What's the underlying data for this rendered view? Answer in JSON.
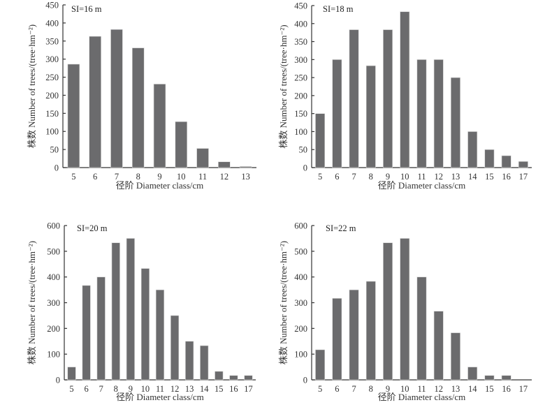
{
  "chart_data": [
    {
      "type": "bar",
      "panel_label": "SI=16 m",
      "categories": [
        "5",
        "6",
        "7",
        "8",
        "9",
        "10",
        "11",
        "12",
        "13"
      ],
      "values": [
        286,
        363,
        382,
        331,
        231,
        127,
        53,
        16,
        3
      ],
      "xlabel": "径阶 Diameter class/cm",
      "ylabel": "株数 Number of trees/(tree·hm⁻²)",
      "ylim": [
        0,
        450
      ],
      "yticks": [
        0,
        50,
        100,
        150,
        200,
        250,
        300,
        350,
        400,
        450
      ],
      "grid": false,
      "legend": "none"
    },
    {
      "type": "bar",
      "panel_label": "SI=18 m",
      "categories": [
        "5",
        "6",
        "7",
        "8",
        "9",
        "10",
        "11",
        "12",
        "13",
        "14",
        "15",
        "16",
        "17"
      ],
      "values": [
        150,
        300,
        383,
        283,
        383,
        433,
        300,
        300,
        250,
        100,
        50,
        33,
        17
      ],
      "xlabel": "径阶 Diameter class/cm",
      "ylabel": "株数 Number of trees/(tree·hm⁻²)",
      "ylim": [
        0,
        450
      ],
      "yticks": [
        0,
        50,
        100,
        150,
        200,
        250,
        300,
        350,
        400,
        450
      ],
      "grid": false,
      "legend": "none"
    },
    {
      "type": "bar",
      "panel_label": "SI=20 m",
      "categories": [
        "5",
        "6",
        "7",
        "8",
        "9",
        "10",
        "11",
        "12",
        "13",
        "14",
        "15",
        "16",
        "17"
      ],
      "values": [
        50,
        367,
        400,
        533,
        550,
        433,
        350,
        250,
        150,
        133,
        33,
        17,
        17
      ],
      "xlabel": "径阶 Diameter class/cm",
      "ylabel": "株数 Number of trees/(tree·hm⁻²)",
      "ylim": [
        0,
        600
      ],
      "yticks": [
        0,
        100,
        200,
        300,
        400,
        500,
        600
      ],
      "grid": false,
      "legend": "none"
    },
    {
      "type": "bar",
      "panel_label": "SI=22 m",
      "categories": [
        "5",
        "6",
        "7",
        "8",
        "9",
        "10",
        "11",
        "12",
        "13",
        "14",
        "15",
        "16",
        "17"
      ],
      "values": [
        117,
        317,
        350,
        383,
        533,
        550,
        400,
        267,
        183,
        50,
        17,
        17,
        0
      ],
      "xlabel": "径阶 Diameter class/cm",
      "ylabel": "株数 Number of trees/(tree·hm⁻²)",
      "ylim": [
        0,
        600
      ],
      "yticks": [
        0,
        100,
        200,
        300,
        400,
        500,
        600
      ],
      "grid": false,
      "legend": "none"
    }
  ],
  "colors": {
    "bar_fill": "#6b6b6d",
    "axis": "#333333"
  }
}
